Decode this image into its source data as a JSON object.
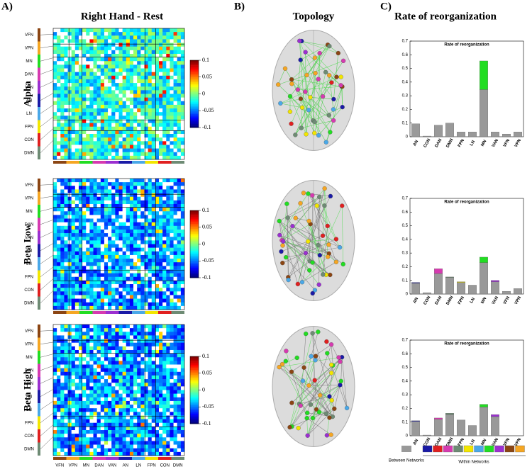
{
  "panels": {
    "a": "A)",
    "b": "B)",
    "c": "C)"
  },
  "titles": {
    "a": "Right Hand - Rest",
    "b": "Topology",
    "c": "Rate of reorganization"
  },
  "rows": [
    "Alpha",
    "Beta Low",
    "Beta High"
  ],
  "colorbar": {
    "lim": [
      -0.1,
      0.1
    ],
    "ticks": [
      0.1,
      0.05,
      0,
      -0.05,
      -0.1
    ]
  },
  "networks": {
    "names": [
      "VFN",
      "VPN",
      "MN",
      "DAN",
      "VAN",
      "AN",
      "LN",
      "FPN",
      "CON",
      "DMN"
    ],
    "colors": [
      "#8b4513",
      "#f5a623",
      "#22dd22",
      "#d63ab0",
      "#9b30d0",
      "#1a1aa6",
      "#4aa8e8",
      "#f2e600",
      "#e02020",
      "#6e8b74"
    ]
  },
  "chart_data": [
    {
      "type": "stacked-bar",
      "title": "Rate of reorganization",
      "categories": [
        "AN",
        "CON",
        "DAN",
        "DMN",
        "FPN",
        "LN",
        "MN",
        "VAN",
        "VFN",
        "VPN"
      ],
      "ylim": [
        0,
        0.7
      ],
      "yticks": [
        0,
        0.1,
        0.2,
        0.3,
        0.4,
        0.5,
        0.6,
        0.7
      ],
      "series": [
        {
          "name": "Between Networks",
          "color": "#999999",
          "values": [
            0.095,
            0.005,
            0.085,
            0.1,
            0.035,
            0.035,
            0.345,
            0.035,
            0.02,
            0.035
          ]
        },
        {
          "name": "Within Networks",
          "colors": [
            "#1a1aa6",
            "#e02020",
            "#d63ab0",
            "#6e8b74",
            "#f2e600",
            "#4aa8e8",
            "#22dd22",
            "#9b30d0",
            "#8b4513",
            "#f5a623"
          ],
          "values": [
            0,
            0,
            0,
            0,
            0,
            0,
            0.21,
            0,
            0,
            0
          ]
        }
      ]
    },
    {
      "type": "stacked-bar",
      "title": "Rate of reorganization",
      "categories": [
        "AN",
        "CON",
        "DAN",
        "DMN",
        "FPN",
        "LN",
        "MN",
        "VAN",
        "VFN",
        "VPN"
      ],
      "ylim": [
        0,
        0.7
      ],
      "yticks": [
        0,
        0.1,
        0.2,
        0.3,
        0.4,
        0.5,
        0.6,
        0.7
      ],
      "series": [
        {
          "color": "#999999",
          "values": [
            0.08,
            0.01,
            0.15,
            0.12,
            0.085,
            0.065,
            0.23,
            0.09,
            0.02,
            0.04
          ]
        },
        {
          "colors": [
            "#1a1aa6",
            "#e02020",
            "#d63ab0",
            "#6e8b74",
            "#f2e600",
            "#4aa8e8",
            "#22dd22",
            "#9b30d0",
            "#8b4513",
            "#f5a623"
          ],
          "values": [
            0.005,
            0,
            0.035,
            0.005,
            0.005,
            0,
            0.04,
            0.01,
            0,
            0
          ]
        }
      ]
    },
    {
      "type": "stacked-bar",
      "title": "Rate of reorganization",
      "categories": [
        "AN",
        "CON",
        "DAN",
        "DMN",
        "FPN",
        "LN",
        "MN",
        "VAN",
        "VFN",
        "VPN"
      ],
      "ylim": [
        0,
        0.7
      ],
      "yticks": [
        0,
        0.1,
        0.2,
        0.3,
        0.4,
        0.5,
        0.6,
        0.7
      ],
      "series": [
        {
          "color": "#999999",
          "values": [
            0.105,
            0.005,
            0.12,
            0.155,
            0.115,
            0.075,
            0.21,
            0.14,
            0,
            0
          ]
        },
        {
          "colors": [
            "#1a1aa6",
            "#e02020",
            "#d63ab0",
            "#6e8b74",
            "#f2e600",
            "#4aa8e8",
            "#22dd22",
            "#9b30d0",
            "#8b4513",
            "#f5a623"
          ],
          "values": [
            0.005,
            0,
            0.01,
            0.01,
            0,
            0,
            0.02,
            0.015,
            0,
            0
          ]
        }
      ]
    }
  ]
}
